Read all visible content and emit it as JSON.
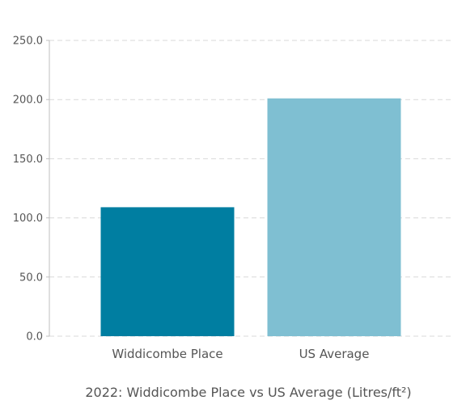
{
  "chart_data": {
    "type": "bar",
    "title": "",
    "caption": "2022: Widdicombe Place vs US Average (Litres/ft²)",
    "xlabel": "",
    "ylabel": "",
    "categories": [
      "Widdicombe Place",
      "US Average"
    ],
    "values": [
      109,
      201
    ],
    "colors": [
      "#007ea1",
      "#7fbfd2"
    ],
    "ylim": [
      0,
      250
    ],
    "y_ticks": [
      "0.0",
      "50.0",
      "100.0",
      "150.0",
      "200.0",
      "250.0"
    ],
    "y_tick_values": [
      0,
      50,
      100,
      150,
      200,
      250
    ],
    "grid": true,
    "legend": "none"
  }
}
